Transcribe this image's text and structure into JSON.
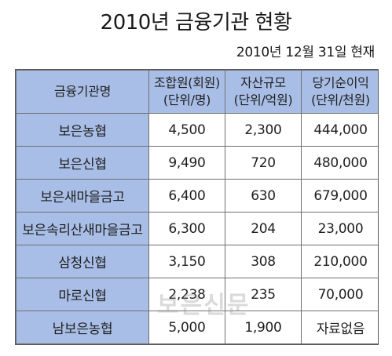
{
  "title": "2010년 금융기관 현황",
  "date": "2010년 12월 31일 현재",
  "table": {
    "headers": [
      {
        "line1": "금융기관명",
        "line2": ""
      },
      {
        "line1": "조합원(회원)",
        "line2": "(단위/명)"
      },
      {
        "line1": "자산규모",
        "line2": "(단위/억원)"
      },
      {
        "line1": "당기순이익",
        "line2": "(단위/천원)"
      }
    ],
    "rows": [
      {
        "name": "보은농협",
        "members": "4,500",
        "assets": "2,300",
        "profit": "444,000"
      },
      {
        "name": "보은신협",
        "members": "9,490",
        "assets": "720",
        "profit": "480,000"
      },
      {
        "name": "보은새마을금고",
        "members": "6,400",
        "assets": "630",
        "profit": "679,000"
      },
      {
        "name": "보은속리산새마을금고",
        "members": "6,300",
        "assets": "204",
        "profit": "23,000"
      },
      {
        "name": "삼청신협",
        "members": "3,150",
        "assets": "308",
        "profit": "210,000"
      },
      {
        "name": "마로신협",
        "members": "2,238",
        "assets": "235",
        "profit": "70,000"
      },
      {
        "name": "남보은농협",
        "members": "5,000",
        "assets": "1,900",
        "profit": "자료없음"
      }
    ]
  },
  "watermark": "보은신문",
  "colors": {
    "header_fill": "#a9bee6",
    "name_fill": "#a9bee6",
    "border": "#6f6f6f"
  }
}
